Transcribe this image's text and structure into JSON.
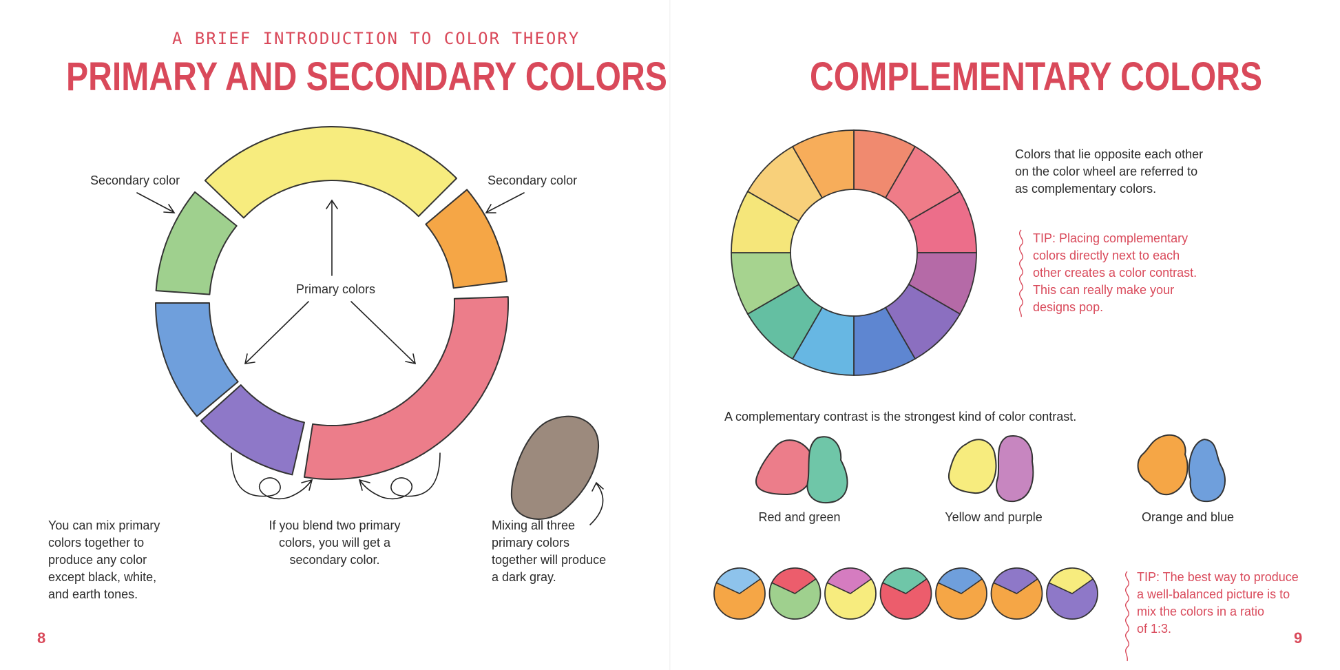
{
  "colors": {
    "accent": "#d9495a",
    "red": "#ec7d8a",
    "yellow": "#f7ec7e",
    "blue": "#6f9fdc",
    "green": "#9fd08e",
    "orange": "#f5a646",
    "purple": "#8e78c8",
    "gray": "#9c8a7d"
  },
  "left_page": {
    "kicker": "A BRIEF INTRODUCTION TO COLOR THEORY",
    "title": "PRIMARY AND SECONDARY COLORS",
    "label_secondary_left": "Secondary color",
    "label_secondary_right": "Secondary color",
    "label_primary": "Primary colors",
    "text_mix": [
      "You can mix primary",
      "colors together to",
      "produce any color",
      "except black, white,",
      "and earth tones."
    ],
    "text_blend": [
      "If you blend two primary",
      "colors, you will get a",
      "secondary color."
    ],
    "text_gray": [
      "Mixing all three",
      "primary colors",
      "together will produce",
      "a dark gray."
    ],
    "page_number": "8"
  },
  "right_page": {
    "title": "COMPLEMENTARY COLORS",
    "intro": [
      "Colors that lie opposite each other",
      "on the color wheel are referred to",
      "as complementary colors."
    ],
    "tip1": [
      "TIP: Placing complementary",
      "colors directly next to each",
      "other creates a color contrast.",
      "This can really make your",
      "designs pop."
    ],
    "contrast_text": "A complementary contrast is the strongest kind of color contrast.",
    "pairs": [
      {
        "label": "Red and green"
      },
      {
        "label": "Yellow and purple"
      },
      {
        "label": "Orange and blue"
      }
    ],
    "tip2": [
      "TIP: The best way to produce",
      "a well-balanced picture is to",
      "mix the colors in a ratio",
      "of 1:3."
    ],
    "page_number": "9"
  }
}
